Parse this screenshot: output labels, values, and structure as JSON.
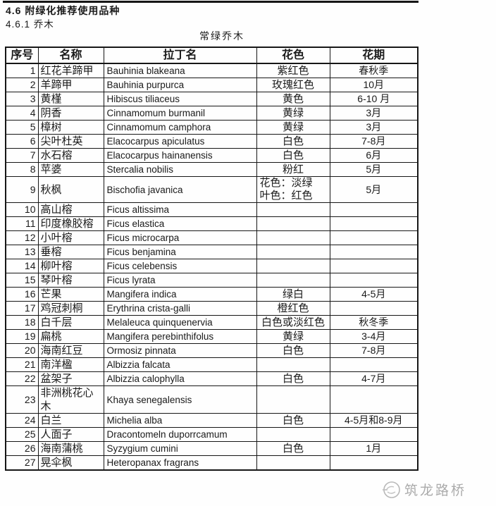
{
  "page": {
    "heading": "4.6 附绿化推荐使用品种",
    "subheading": "4.6.1 乔木",
    "table_caption": "常绿乔木"
  },
  "table": {
    "columns": [
      {
        "key": "no",
        "label": "序号"
      },
      {
        "key": "name",
        "label": "名称"
      },
      {
        "key": "latin",
        "label": "拉丁名"
      },
      {
        "key": "color",
        "label": "花色"
      },
      {
        "key": "period",
        "label": "花期"
      }
    ],
    "rows": [
      {
        "no": "1",
        "name": "红花羊蹄甲",
        "latin": "Bauhinia blakeana",
        "color": "紫红色",
        "period": "春秋季"
      },
      {
        "no": "2",
        "name": "羊蹄甲",
        "latin": "Bauhinia purpurca",
        "color": "玫瑰红色",
        "period": "10月"
      },
      {
        "no": "3",
        "name": "黄槿",
        "latin": "Hibiscus tiliaceus",
        "color": "黄色",
        "period": "6-10 月"
      },
      {
        "no": "4",
        "name": "阴香",
        "latin": "Cinnamomum burmanil",
        "color": "黄绿",
        "period": "3月"
      },
      {
        "no": "5",
        "name": "樟树",
        "latin": "Cinnamomum camphora",
        "color": "黄绿",
        "period": "3月"
      },
      {
        "no": "6",
        "name": "尖叶杜英",
        "latin": "Elacocarpus apiculatus",
        "color": "白色",
        "period": "7-8月"
      },
      {
        "no": "7",
        "name": "水石榕",
        "latin": "Elacocarpus hainanensis",
        "color": "白色",
        "period": "6月"
      },
      {
        "no": "8",
        "name": "苹婆",
        "latin": "Stercalia nobilis",
        "color": "粉红",
        "period": "5月"
      },
      {
        "no": "9",
        "name": "秋枫",
        "latin": "Bischofia javanica",
        "color": "花色：淡绿\n叶色：红色",
        "period": "5月"
      },
      {
        "no": "10",
        "name": "高山榕",
        "latin": "Ficus altissima",
        "color": "",
        "period": ""
      },
      {
        "no": "11",
        "name": "印度橡胶榕",
        "latin": "Ficus elastica",
        "color": "",
        "period": ""
      },
      {
        "no": "12",
        "name": "小叶榕",
        "latin": "Ficus microcarpa",
        "color": "",
        "period": ""
      },
      {
        "no": "13",
        "name": "垂榕",
        "latin": "Ficus benjamina",
        "color": "",
        "period": ""
      },
      {
        "no": "14",
        "name": "柳叶榕",
        "latin": "Ficus celebensis",
        "color": "",
        "period": ""
      },
      {
        "no": "15",
        "name": "琴叶榕",
        "latin": "Ficus lyrata",
        "color": "",
        "period": ""
      },
      {
        "no": "16",
        "name": "芒果",
        "latin": "Mangifera indica",
        "color": "绿白",
        "period": "4-5月"
      },
      {
        "no": "17",
        "name": "鸡冠刺桐",
        "latin": "Erythrina crista-galli",
        "color": "橙红色",
        "period": ""
      },
      {
        "no": "18",
        "name": "白千层",
        "latin": "Melaleuca quinquenervia",
        "color": "白色或淡红色",
        "period": "秋冬季"
      },
      {
        "no": "19",
        "name": "扁桃",
        "latin": "Mangifera perebinthifolus",
        "color": "黄绿",
        "period": "3-4月"
      },
      {
        "no": "20",
        "name": "海南红豆",
        "latin": "Ormosiz pinnata",
        "color": "白色",
        "period": "7-8月"
      },
      {
        "no": "21",
        "name": "南洋楹",
        "latin": "Albizzia falcata",
        "color": "",
        "period": ""
      },
      {
        "no": "22",
        "name": "盆架子",
        "latin": "Albizzia calophylla",
        "color": "白色",
        "period": "4-7月"
      },
      {
        "no": "23",
        "name": "非洲桃花心木",
        "latin": "Khaya senegalensis",
        "color": "",
        "period": ""
      },
      {
        "no": "24",
        "name": "白兰",
        "latin": "Michelia alba",
        "color": "白色",
        "period": "4-5月和8-9月"
      },
      {
        "no": "25",
        "name": "人面子",
        "latin": "Dracontomeln duporrcamum",
        "color": "",
        "period": ""
      },
      {
        "no": "26",
        "name": "海南蒲桃",
        "latin": "Syzygium cumini",
        "color": "白色",
        "period": "1月"
      },
      {
        "no": "27",
        "name": "晃伞枫",
        "latin": "Heteropanax fragrans",
        "color": "",
        "period": ""
      }
    ]
  },
  "watermark": {
    "icon": "zhulong-logo-icon",
    "text": "筑龙路桥",
    "color": "#ababab"
  },
  "colors": {
    "text": "#1a1a1a",
    "border": "#161616",
    "background": "#fefefe"
  }
}
